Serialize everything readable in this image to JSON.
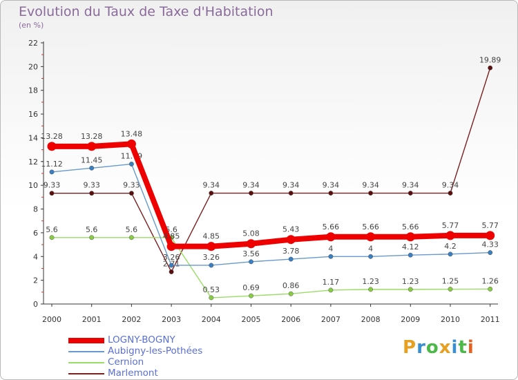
{
  "title": "Evolution du Taux de Taxe d'Habitation",
  "subtitle": "(en %)",
  "logo": {
    "text": "Proxiti",
    "colors": [
      "#e8a020",
      "#3a8fd0",
      "#4cb848",
      "#e8a020",
      "#3a8fd0",
      "#4cb848",
      "#e86020"
    ]
  },
  "chart_data": {
    "type": "line",
    "x": [
      "2000",
      "2001",
      "2002",
      "2003",
      "2004",
      "2005",
      "2006",
      "2007",
      "2008",
      "2009",
      "2010",
      "2011"
    ],
    "ylim": [
      0,
      22
    ],
    "yticks": [
      0,
      2,
      4,
      6,
      8,
      10,
      12,
      14,
      16,
      18,
      20,
      22
    ],
    "grid": false,
    "legend_position": "bottom-left",
    "series": [
      {
        "name": "Marlemont",
        "color": "#7a1f1f",
        "dot": "#5a0e0e",
        "values": [
          9.33,
          9.33,
          9.33,
          2.71,
          9.34,
          9.34,
          9.34,
          9.34,
          9.34,
          9.34,
          9.34,
          19.89
        ],
        "labels": [
          "9.33",
          "9.33",
          "9.33",
          "2.71",
          "9.34",
          "9.34",
          "9.34",
          "9.34",
          "9.34",
          "9.34",
          "9.34",
          "19.89"
        ]
      },
      {
        "name": "Cernion",
        "color": "#99dd66",
        "dot": "#88cc44",
        "values": [
          5.6,
          5.6,
          5.6,
          5.6,
          0.53,
          0.69,
          0.86,
          1.17,
          1.23,
          1.23,
          1.25,
          1.26
        ],
        "labels": [
          "5.6",
          "5.6",
          "5.6",
          "5.6",
          "0.53",
          "0.69",
          "0.86",
          "1.17",
          "1.23",
          "1.23",
          "1.25",
          "1.26"
        ]
      },
      {
        "name": "Aubigny-les-Pothées",
        "color": "#6699cc",
        "dot": "#3a7fc0",
        "values": [
          11.12,
          11.45,
          11.79,
          3.26,
          3.26,
          3.56,
          3.78,
          4,
          4,
          4.12,
          4.2,
          4.33
        ],
        "labels": [
          "11.12",
          "11.45",
          "11.79",
          "3.26",
          "3.26",
          "3.56",
          "3.78",
          "4",
          "4",
          "4.12",
          "4.2",
          "4.33"
        ]
      },
      {
        "name": "LOGNY-BOGNY",
        "color": "#ee0000",
        "dot": "#ee0000",
        "values": [
          13.28,
          13.28,
          13.48,
          4.85,
          4.85,
          5.08,
          5.43,
          5.66,
          5.66,
          5.66,
          5.77,
          5.77
        ],
        "labels": [
          "13.28",
          "13.28",
          "13.48",
          "4.85",
          "4.85",
          "5.08",
          "5.43",
          "5.66",
          "5.66",
          "5.66",
          "5.77",
          "5.77"
        ]
      }
    ]
  }
}
